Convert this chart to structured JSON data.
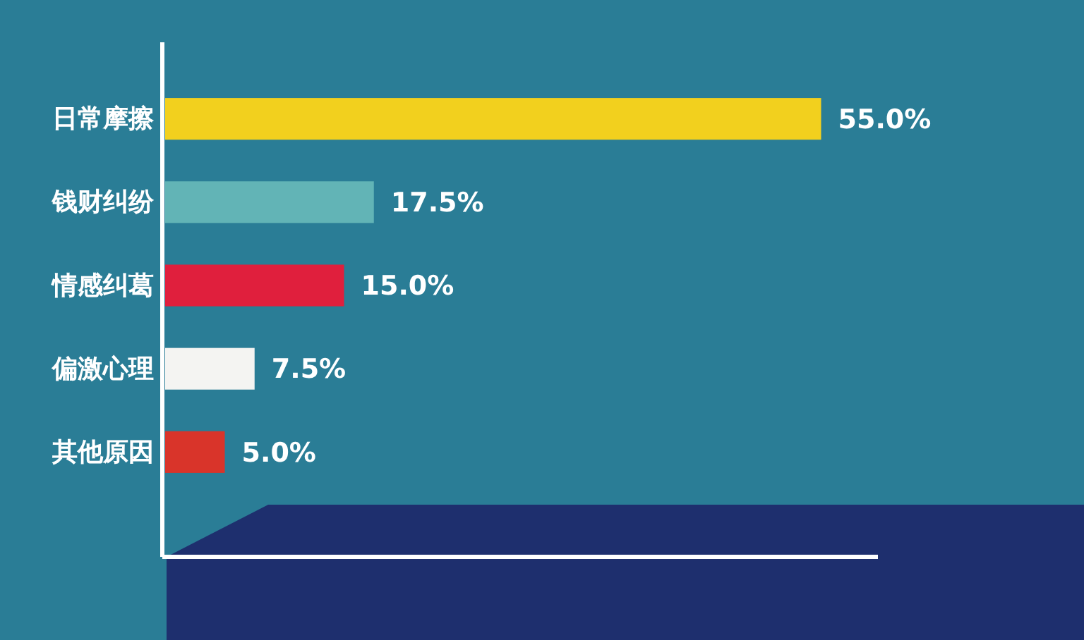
{
  "chart_data": {
    "type": "bar",
    "orientation": "horizontal",
    "categories": [
      "日常摩擦",
      "钱财纠纷",
      "情感纠葛",
      "偏激心理",
      "其他原因"
    ],
    "values": [
      55.0,
      17.5,
      15.0,
      7.5,
      5.0
    ],
    "value_labels": [
      "55.0%",
      "17.5%",
      "15.0%",
      "7.5%",
      "5.0%"
    ],
    "colors": [
      "#f2d01e",
      "#62b4b6",
      "#e01f3d",
      "#f4f4f2",
      "#d9342a"
    ],
    "xlim": [
      0,
      60
    ],
    "tick_labels": "y"
  }
}
